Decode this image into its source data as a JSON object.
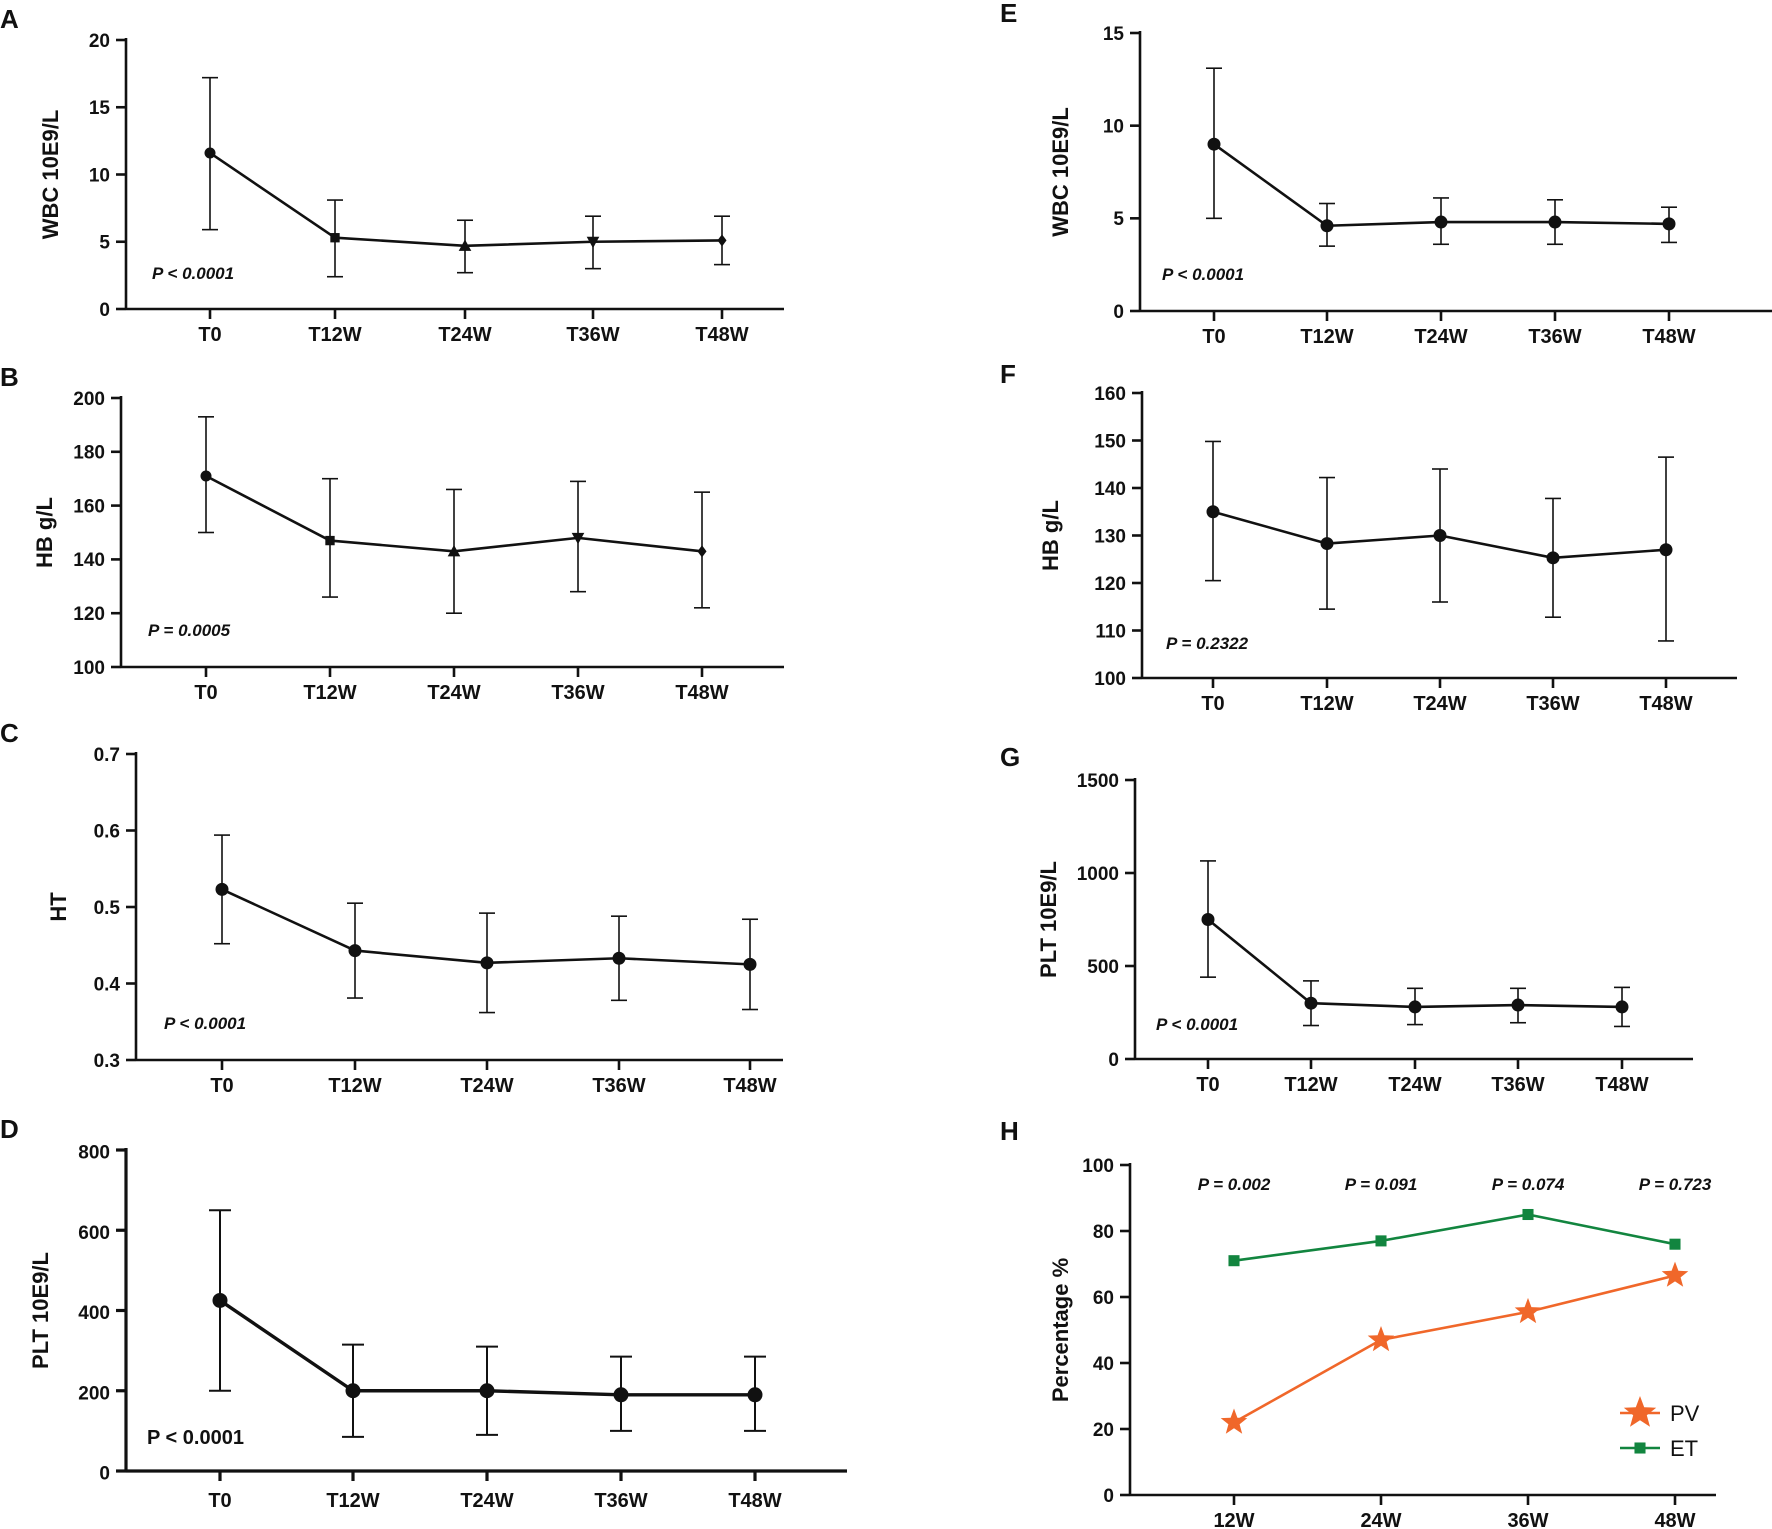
{
  "figure": {
    "colors": {
      "axis": "#111111",
      "pv": "#F0672A",
      "et": "#12853F"
    }
  },
  "chart_data": [
    {
      "panel": "A",
      "type": "line",
      "xlabel": "",
      "ylabel": "WBC 10E9/L",
      "categories": [
        "T0",
        "T12W",
        "T24W",
        "T36W",
        "T48W"
      ],
      "ylim": [
        0,
        20
      ],
      "yticks": [
        0,
        5,
        10,
        15,
        20
      ],
      "series": [
        {
          "name": "WBC",
          "values": [
            11.6,
            5.3,
            4.7,
            5.0,
            5.1
          ],
          "error_low": [
            5.9,
            2.4,
            2.7,
            3.0,
            3.3
          ],
          "error_high": [
            17.2,
            8.1,
            6.6,
            6.9,
            6.9
          ],
          "markers": [
            "circle",
            "square",
            "triangle-up",
            "triangle-down",
            "diamond"
          ]
        }
      ],
      "annotation": "P < 0.0001"
    },
    {
      "panel": "B",
      "type": "line",
      "xlabel": "",
      "ylabel": "HB g/L",
      "categories": [
        "T0",
        "T12W",
        "T24W",
        "T36W",
        "T48W"
      ],
      "ylim": [
        100,
        200
      ],
      "yticks": [
        100,
        120,
        140,
        160,
        180,
        200
      ],
      "series": [
        {
          "name": "HB",
          "values": [
            171,
            147,
            143,
            148,
            143
          ],
          "error_low": [
            150,
            126,
            120,
            128,
            122
          ],
          "error_high": [
            193,
            170,
            166,
            169,
            165
          ],
          "markers": [
            "circle",
            "square",
            "triangle-up",
            "triangle-down",
            "diamond"
          ]
        }
      ],
      "annotation": "P = 0.0005"
    },
    {
      "panel": "C",
      "type": "line",
      "xlabel": "",
      "ylabel": "HT",
      "categories": [
        "T0",
        "T12W",
        "T24W",
        "T36W",
        "T48W"
      ],
      "ylim": [
        0.3,
        0.7
      ],
      "yticks": [
        0.3,
        0.4,
        0.5,
        0.6,
        0.7
      ],
      "series": [
        {
          "name": "HT",
          "values": [
            0.523,
            0.443,
            0.427,
            0.433,
            0.425
          ],
          "error_low": [
            0.452,
            0.381,
            0.362,
            0.378,
            0.366
          ],
          "error_high": [
            0.594,
            0.505,
            0.492,
            0.488,
            0.484
          ],
          "markers": [
            "circle",
            "circle",
            "circle",
            "circle",
            "circle"
          ]
        }
      ],
      "annotation": "P < 0.0001"
    },
    {
      "panel": "D",
      "type": "line",
      "xlabel": "",
      "ylabel": "PLT 10E9/L",
      "categories": [
        "T0",
        "T12W",
        "T24W",
        "T36W",
        "T48W"
      ],
      "ylim": [
        0,
        800
      ],
      "yticks": [
        0,
        200,
        400,
        600,
        800
      ],
      "series": [
        {
          "name": "PLT",
          "values": [
            425,
            200,
            200,
            190,
            190
          ],
          "error_low": [
            200,
            85,
            90,
            100,
            100
          ],
          "error_high": [
            650,
            315,
            310,
            285,
            285
          ],
          "markers": [
            "circle",
            "circle",
            "circle",
            "circle",
            "circle"
          ]
        }
      ],
      "annotation": "P < 0.0001"
    },
    {
      "panel": "E",
      "type": "line",
      "xlabel": "",
      "ylabel": "WBC 10E9/L",
      "categories": [
        "T0",
        "T12W",
        "T24W",
        "T36W",
        "T48W"
      ],
      "ylim": [
        0,
        15
      ],
      "yticks": [
        0,
        5,
        10,
        15
      ],
      "series": [
        {
          "name": "WBC",
          "values": [
            9.0,
            4.6,
            4.8,
            4.8,
            4.7
          ],
          "error_low": [
            5.0,
            3.5,
            3.6,
            3.6,
            3.7
          ],
          "error_high": [
            13.1,
            5.8,
            6.1,
            6.0,
            5.6
          ],
          "markers": [
            "circle",
            "circle",
            "circle",
            "circle",
            "circle"
          ]
        }
      ],
      "annotation": "P < 0.0001"
    },
    {
      "panel": "F",
      "type": "line",
      "xlabel": "",
      "ylabel": "HB g/L",
      "categories": [
        "T0",
        "T12W",
        "T24W",
        "T36W",
        "T48W"
      ],
      "ylim": [
        100,
        160
      ],
      "yticks": [
        100,
        110,
        120,
        130,
        140,
        150,
        160
      ],
      "series": [
        {
          "name": "HB",
          "values": [
            135,
            128.3,
            130,
            125.3,
            127
          ],
          "error_low": [
            120.5,
            114.5,
            116,
            112.8,
            107.8
          ],
          "error_high": [
            149.8,
            142.2,
            144,
            137.8,
            146.5
          ],
          "markers": [
            "circle",
            "circle",
            "circle",
            "circle",
            "circle"
          ]
        }
      ],
      "annotation": "P = 0.2322"
    },
    {
      "panel": "G",
      "type": "line",
      "xlabel": "",
      "ylabel": "PLT 10E9/L",
      "categories": [
        "T0",
        "T12W",
        "T24W",
        "T36W",
        "T48W"
      ],
      "ylim": [
        0,
        1500
      ],
      "yticks": [
        0,
        500,
        1000,
        1500
      ],
      "series": [
        {
          "name": "PLT",
          "values": [
            750,
            300,
            280,
            290,
            280
          ],
          "error_low": [
            440,
            180,
            185,
            195,
            175
          ],
          "error_high": [
            1065,
            420,
            380,
            380,
            385
          ],
          "markers": [
            "circle",
            "circle",
            "circle",
            "circle",
            "circle"
          ]
        }
      ],
      "annotation": "P < 0.0001"
    },
    {
      "panel": "H",
      "type": "line",
      "xlabel": "",
      "ylabel": "Percentage %",
      "categories": [
        "12W",
        "24W",
        "36W",
        "48W"
      ],
      "ylim": [
        0,
        100
      ],
      "yticks": [
        0,
        20,
        40,
        60,
        80,
        100
      ],
      "series": [
        {
          "name": "PV",
          "values": [
            22,
            47,
            55.5,
            66.5
          ],
          "marker": "star",
          "color": "#F0672A"
        },
        {
          "name": "ET",
          "values": [
            71,
            77,
            85,
            76
          ],
          "marker": "square",
          "color": "#12853F"
        }
      ],
      "category_annotations": [
        "P = 0.002",
        "P = 0.091",
        "P = 0.074",
        "P = 0.723"
      ],
      "legend": "bottom-right"
    }
  ]
}
